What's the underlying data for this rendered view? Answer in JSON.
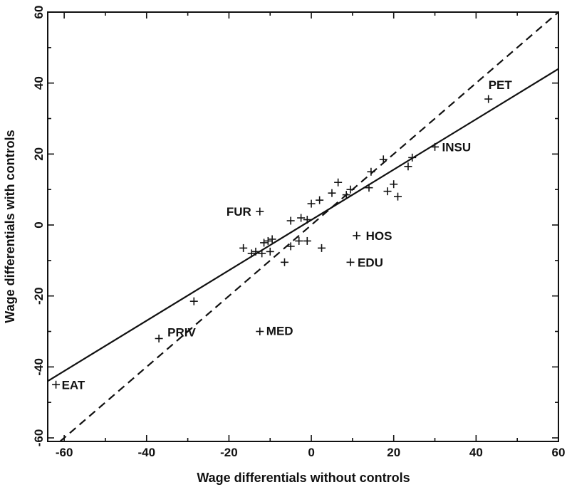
{
  "chart_data": {
    "type": "scatter",
    "title": "",
    "xlabel": "Wage differentials without controls",
    "ylabel": "Wage differentials with controls",
    "xlim": [
      -64,
      60
    ],
    "ylim": [
      -61,
      60
    ],
    "x_ticks": [
      -60,
      -40,
      -20,
      0,
      20,
      40,
      60
    ],
    "y_ticks": [
      -60,
      -40,
      -20,
      0,
      20,
      40,
      60
    ],
    "grid": false,
    "points": [
      {
        "x": -62,
        "y": -45,
        "label": "EAT"
      },
      {
        "x": -37,
        "y": -32,
        "label": "PRIV"
      },
      {
        "x": -28.5,
        "y": -21.5,
        "label": ""
      },
      {
        "x": -12.5,
        "y": -30,
        "label": "MED"
      },
      {
        "x": -12.5,
        "y": 3.8,
        "label": "FUR"
      },
      {
        "x": -16.5,
        "y": -6.5,
        "label": ""
      },
      {
        "x": -14.5,
        "y": -8,
        "label": ""
      },
      {
        "x": -13.5,
        "y": -7.5,
        "label": ""
      },
      {
        "x": -12,
        "y": -8,
        "label": ""
      },
      {
        "x": -11.5,
        "y": -5,
        "label": ""
      },
      {
        "x": -10.5,
        "y": -4.5,
        "label": ""
      },
      {
        "x": -9.5,
        "y": -4,
        "label": ""
      },
      {
        "x": -10,
        "y": -7.5,
        "label": ""
      },
      {
        "x": -6.5,
        "y": -10.5,
        "label": ""
      },
      {
        "x": -5,
        "y": -6,
        "label": ""
      },
      {
        "x": -5,
        "y": 1.2,
        "label": ""
      },
      {
        "x": -3,
        "y": -4.5,
        "label": ""
      },
      {
        "x": -2.5,
        "y": 2,
        "label": ""
      },
      {
        "x": -1,
        "y": -4.5,
        "label": ""
      },
      {
        "x": -1,
        "y": 1.5,
        "label": ""
      },
      {
        "x": 0,
        "y": 6,
        "label": ""
      },
      {
        "x": 2,
        "y": 7,
        "label": ""
      },
      {
        "x": 2.5,
        "y": -6.5,
        "label": ""
      },
      {
        "x": 5,
        "y": 9,
        "label": ""
      },
      {
        "x": 6.5,
        "y": 12,
        "label": ""
      },
      {
        "x": 8.5,
        "y": 8.5,
        "label": ""
      },
      {
        "x": 9.5,
        "y": 10,
        "label": ""
      },
      {
        "x": 9.5,
        "y": -10.5,
        "label": "EDU"
      },
      {
        "x": 11,
        "y": -3,
        "label": "HOS"
      },
      {
        "x": 14,
        "y": 10.5,
        "label": ""
      },
      {
        "x": 14.5,
        "y": 15,
        "label": ""
      },
      {
        "x": 17.5,
        "y": 18.5,
        "label": ""
      },
      {
        "x": 18.5,
        "y": 9.5,
        "label": ""
      },
      {
        "x": 20,
        "y": 11.5,
        "label": ""
      },
      {
        "x": 21,
        "y": 8,
        "label": ""
      },
      {
        "x": 23.5,
        "y": 16.5,
        "label": ""
      },
      {
        "x": 24.5,
        "y": 19,
        "label": ""
      },
      {
        "x": 30,
        "y": 22,
        "label": "INSU"
      },
      {
        "x": 43,
        "y": 35.5,
        "label": "PET"
      }
    ],
    "lines": [
      {
        "style": "solid",
        "from": [
          -64,
          -44
        ],
        "to": [
          60,
          44
        ]
      },
      {
        "style": "dashed",
        "from": [
          -61,
          -61
        ],
        "to": [
          60,
          60
        ]
      }
    ]
  }
}
